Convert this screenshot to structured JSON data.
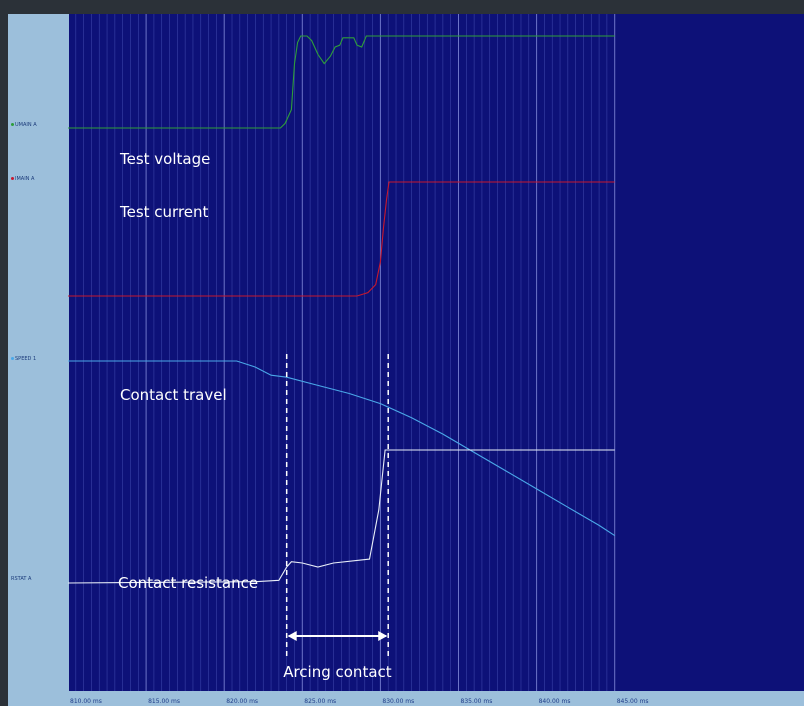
{
  "chart_data": {
    "type": "line",
    "x_unit": "ms",
    "xlim": [
      810,
      845
    ],
    "x_ticks": [
      "810.00 ms",
      "815.00 ms",
      "820.00 ms",
      "825.00 ms",
      "830.00 ms",
      "835.00 ms",
      "840.00 ms",
      "845.00 ms"
    ],
    "channel_tags": [
      "UMAIN A",
      "IMAIN A",
      "SPEED 1",
      "RSTAT A"
    ],
    "series": [
      {
        "name": "Test voltage",
        "color": "#2e9e3a",
        "points": [
          [
            810,
            0
          ],
          [
            823.6,
            0
          ],
          [
            823.9,
            0.05
          ],
          [
            824.3,
            0.2
          ],
          [
            824.5,
            0.7
          ],
          [
            824.7,
            0.93
          ],
          [
            824.9,
            1.0
          ],
          [
            825.3,
            1.0
          ],
          [
            825.6,
            0.95
          ],
          [
            826.0,
            0.8
          ],
          [
            826.4,
            0.7
          ],
          [
            826.8,
            0.78
          ],
          [
            827.1,
            0.88
          ],
          [
            827.4,
            0.9
          ],
          [
            827.6,
            0.98
          ],
          [
            828.3,
            0.98
          ],
          [
            828.5,
            0.9
          ],
          [
            828.8,
            0.88
          ],
          [
            829.1,
            1.0
          ],
          [
            845,
            1.0
          ]
        ]
      },
      {
        "name": "Test current",
        "color": "#c8182e",
        "points": [
          [
            810,
            1.0
          ],
          [
            828.5,
            1.0
          ],
          [
            829.2,
            0.97
          ],
          [
            829.7,
            0.9
          ],
          [
            830.0,
            0.7
          ],
          [
            830.2,
            0.4
          ],
          [
            830.4,
            0.15
          ],
          [
            830.55,
            0
          ],
          [
            845,
            0
          ]
        ]
      },
      {
        "name": "Contact travel",
        "color": "#4aa8e8",
        "points": [
          [
            810,
            1.0
          ],
          [
            820.8,
            1.0
          ],
          [
            822,
            0.97
          ],
          [
            823,
            0.93
          ],
          [
            824,
            0.92
          ],
          [
            826,
            0.88
          ],
          [
            828,
            0.84
          ],
          [
            830,
            0.79
          ],
          [
            832,
            0.72
          ],
          [
            834,
            0.64
          ],
          [
            836,
            0.55
          ],
          [
            838,
            0.46
          ],
          [
            840,
            0.37
          ],
          [
            842,
            0.28
          ],
          [
            844,
            0.19
          ],
          [
            845,
            0.14
          ]
        ]
      },
      {
        "name": "Contact resistance",
        "color": "#e8eef8",
        "points": [
          [
            810,
            0
          ],
          [
            822,
            0.01
          ],
          [
            823.5,
            0.02
          ],
          [
            824.0,
            0.12
          ],
          [
            824.3,
            0.16
          ],
          [
            825,
            0.15
          ],
          [
            826,
            0.12
          ],
          [
            827,
            0.15
          ],
          [
            829.3,
            0.18
          ],
          [
            829.9,
            0.55
          ],
          [
            830.3,
            1.0
          ],
          [
            845,
            1.0
          ]
        ]
      }
    ],
    "annotations": {
      "arcing_start_ms": 824.0,
      "arcing_end_ms": 830.5,
      "arcing_label": "Arcing contact"
    }
  }
}
